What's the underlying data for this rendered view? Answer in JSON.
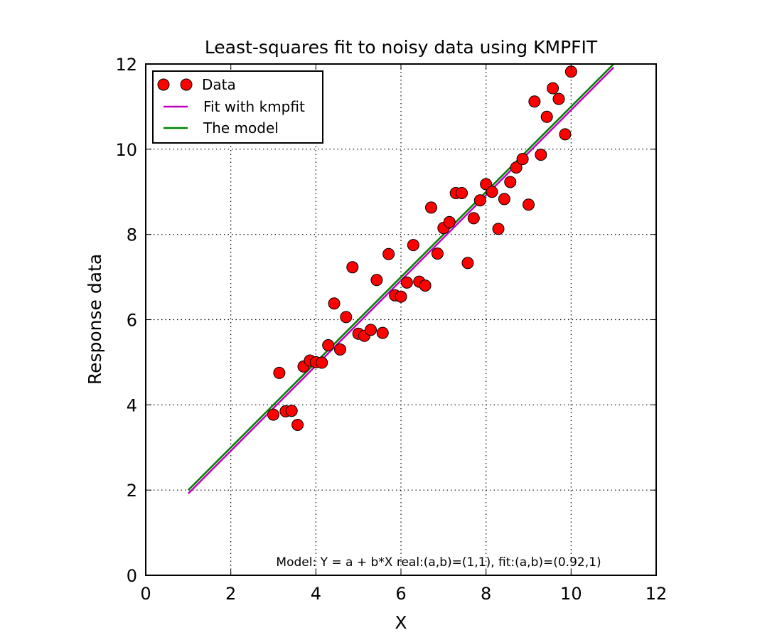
{
  "chart_data": {
    "type": "scatter",
    "title": "Least-squares fit to noisy data using KMPFIT",
    "xlabel": "X",
    "ylabel": "Response data",
    "xlim": [
      0,
      12
    ],
    "ylim": [
      0,
      12
    ],
    "xticks": [
      0,
      2,
      4,
      6,
      8,
      10,
      12
    ],
    "yticks": [
      0,
      2,
      4,
      6,
      8,
      10,
      12
    ],
    "grid": true,
    "legend_position": "top-left",
    "annotation": "Model: Y = a + b*X    real:(a,b)=(1,1), fit:(a,b)=(0.92,1)",
    "series": [
      {
        "name": "Data",
        "kind": "markers",
        "color": "#ff0000",
        "points": [
          {
            "x": 3.0,
            "y": 3.77
          },
          {
            "x": 3.14,
            "y": 4.75
          },
          {
            "x": 3.29,
            "y": 3.85
          },
          {
            "x": 3.43,
            "y": 3.86
          },
          {
            "x": 3.57,
            "y": 3.53
          },
          {
            "x": 3.71,
            "y": 4.9
          },
          {
            "x": 3.86,
            "y": 5.04
          },
          {
            "x": 4.0,
            "y": 5.0
          },
          {
            "x": 4.14,
            "y": 4.99
          },
          {
            "x": 4.29,
            "y": 5.4
          },
          {
            "x": 4.43,
            "y": 6.38
          },
          {
            "x": 4.57,
            "y": 5.3
          },
          {
            "x": 4.71,
            "y": 6.06
          },
          {
            "x": 4.86,
            "y": 7.23
          },
          {
            "x": 5.0,
            "y": 5.67
          },
          {
            "x": 5.14,
            "y": 5.62
          },
          {
            "x": 5.29,
            "y": 5.76
          },
          {
            "x": 5.43,
            "y": 6.93
          },
          {
            "x": 5.57,
            "y": 5.69
          },
          {
            "x": 5.71,
            "y": 7.54
          },
          {
            "x": 5.86,
            "y": 6.57
          },
          {
            "x": 6.0,
            "y": 6.54
          },
          {
            "x": 6.14,
            "y": 6.87
          },
          {
            "x": 6.29,
            "y": 7.75
          },
          {
            "x": 6.43,
            "y": 6.89
          },
          {
            "x": 6.57,
            "y": 6.8
          },
          {
            "x": 6.71,
            "y": 8.63
          },
          {
            "x": 6.86,
            "y": 7.55
          },
          {
            "x": 7.0,
            "y": 8.15
          },
          {
            "x": 7.14,
            "y": 8.29
          },
          {
            "x": 7.29,
            "y": 8.97
          },
          {
            "x": 7.43,
            "y": 8.97
          },
          {
            "x": 7.57,
            "y": 7.33
          },
          {
            "x": 7.71,
            "y": 8.38
          },
          {
            "x": 7.86,
            "y": 8.8
          },
          {
            "x": 8.0,
            "y": 9.18
          },
          {
            "x": 8.14,
            "y": 9.0
          },
          {
            "x": 8.29,
            "y": 8.13
          },
          {
            "x": 8.43,
            "y": 8.83
          },
          {
            "x": 8.57,
            "y": 9.23
          },
          {
            "x": 8.71,
            "y": 9.57
          },
          {
            "x": 8.86,
            "y": 9.77
          },
          {
            "x": 9.0,
            "y": 8.7
          },
          {
            "x": 9.14,
            "y": 11.12
          },
          {
            "x": 9.29,
            "y": 9.87
          },
          {
            "x": 9.43,
            "y": 10.76
          },
          {
            "x": 9.57,
            "y": 11.43
          },
          {
            "x": 9.71,
            "y": 11.18
          },
          {
            "x": 9.86,
            "y": 10.35
          },
          {
            "x": 10.0,
            "y": 11.82
          }
        ]
      },
      {
        "name": "Fit with kmpfit",
        "kind": "line",
        "color": "#bf00bf",
        "points": [
          {
            "x": 1.0,
            "y": 1.92
          },
          {
            "x": 11.0,
            "y": 11.92
          }
        ]
      },
      {
        "name": "The model",
        "kind": "line",
        "color": "#008000",
        "points": [
          {
            "x": 1.0,
            "y": 2.0
          },
          {
            "x": 11.0,
            "y": 12.0
          }
        ]
      }
    ]
  }
}
